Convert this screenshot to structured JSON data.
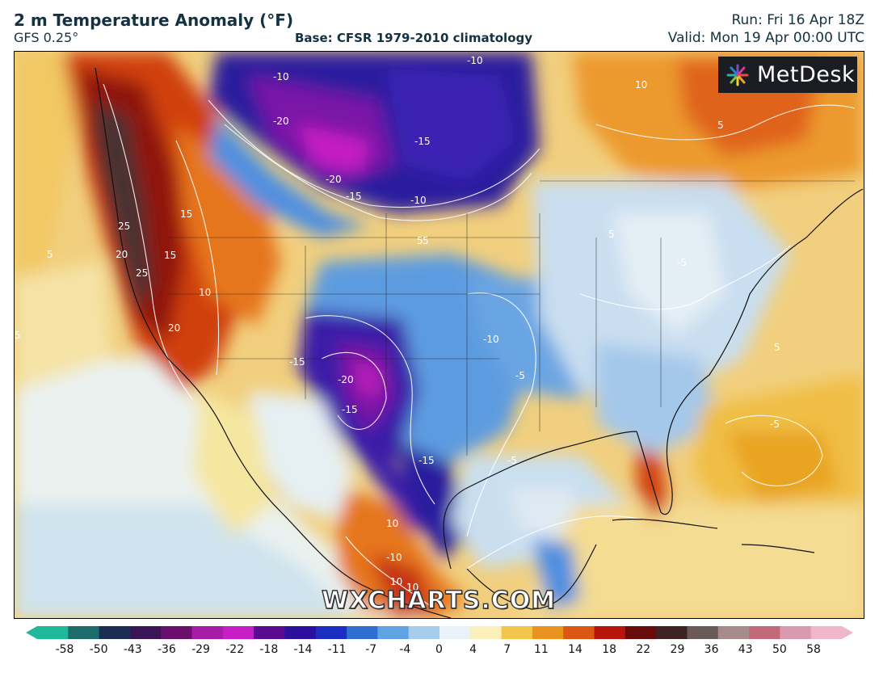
{
  "header": {
    "title": "2 m Temperature Anomaly (°F)",
    "model": "GFS 0.25°",
    "base": "Base: CFSR 1979-2010 climatology",
    "run": "Run: Fri 16 Apr 18Z",
    "valid": "Valid: Mon 19 Apr 00:00 UTC"
  },
  "logo": {
    "text": "MetDesk",
    "icon": "metdesk-flower-icon"
  },
  "watermark": "WXCHARTS.COM",
  "colorbar": {
    "labels": [
      "-58",
      "-50",
      "-43",
      "-36",
      "-29",
      "-22",
      "-18",
      "-14",
      "-11",
      "-7",
      "-4",
      "0",
      "4",
      "7",
      "11",
      "14",
      "18",
      "22",
      "29",
      "36",
      "43",
      "50",
      "58"
    ],
    "colors": [
      "#20b89a",
      "#1d6b6a",
      "#1c2d55",
      "#3b1457",
      "#6a0f6e",
      "#a81aa8",
      "#c41ec4",
      "#5a0c8f",
      "#2b0f9e",
      "#1a2ec2",
      "#2f6fd1",
      "#5ea4e3",
      "#a5cdee",
      "#e8f2f8",
      "#fbf0bc",
      "#f2c64a",
      "#e9931f",
      "#de5613",
      "#b8140e",
      "#6a0b0b",
      "#3f2323",
      "#6b5a5a",
      "#a78a8a",
      "#c06a7a",
      "#d99aae",
      "#f0b7cc"
    ]
  },
  "map": {
    "contour_labels": [
      "-10",
      "-10",
      "-20",
      "-15",
      "-20",
      "-15",
      "-10",
      "10",
      "5",
      "5",
      "25",
      "20",
      "25",
      "15",
      "15",
      "10",
      "20",
      "5",
      "5",
      "-5",
      "-5",
      "-10",
      "-15",
      "-20",
      "-15",
      "-15",
      "-5",
      "-10",
      "10",
      "10",
      "10",
      "5",
      "-5",
      "5",
      "5"
    ]
  }
}
